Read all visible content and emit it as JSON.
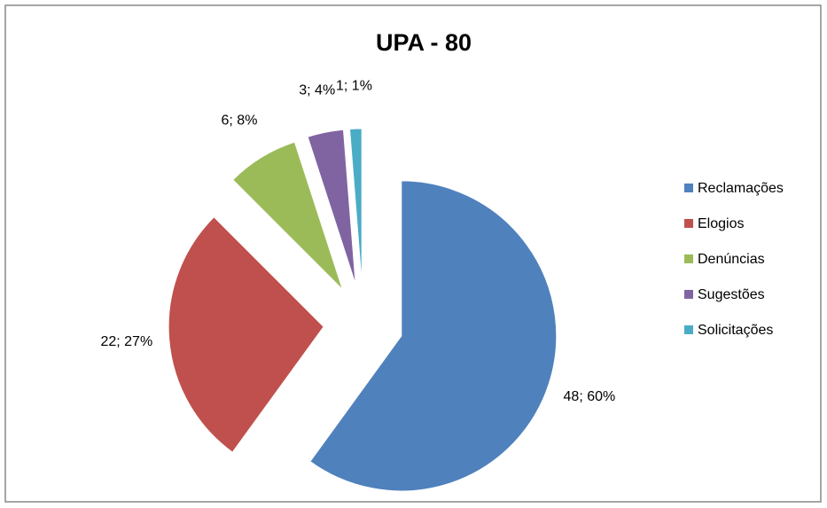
{
  "chart_data": {
    "type": "pie",
    "title": "UPA - 80",
    "categories": [
      "Reclamações",
      "Elogios",
      "Denúncias",
      "Sugestões",
      "Solicitações"
    ],
    "values": [
      48,
      22,
      6,
      3,
      1
    ],
    "value_labels": [
      "48; 60%",
      "22; 27%",
      "6; 8%",
      "3; 4%",
      "1; 1%"
    ],
    "colors": [
      "#4f81bd",
      "#c0504d",
      "#9bbb59",
      "#8064a2",
      "#4bacc6"
    ],
    "legend": "right"
  }
}
